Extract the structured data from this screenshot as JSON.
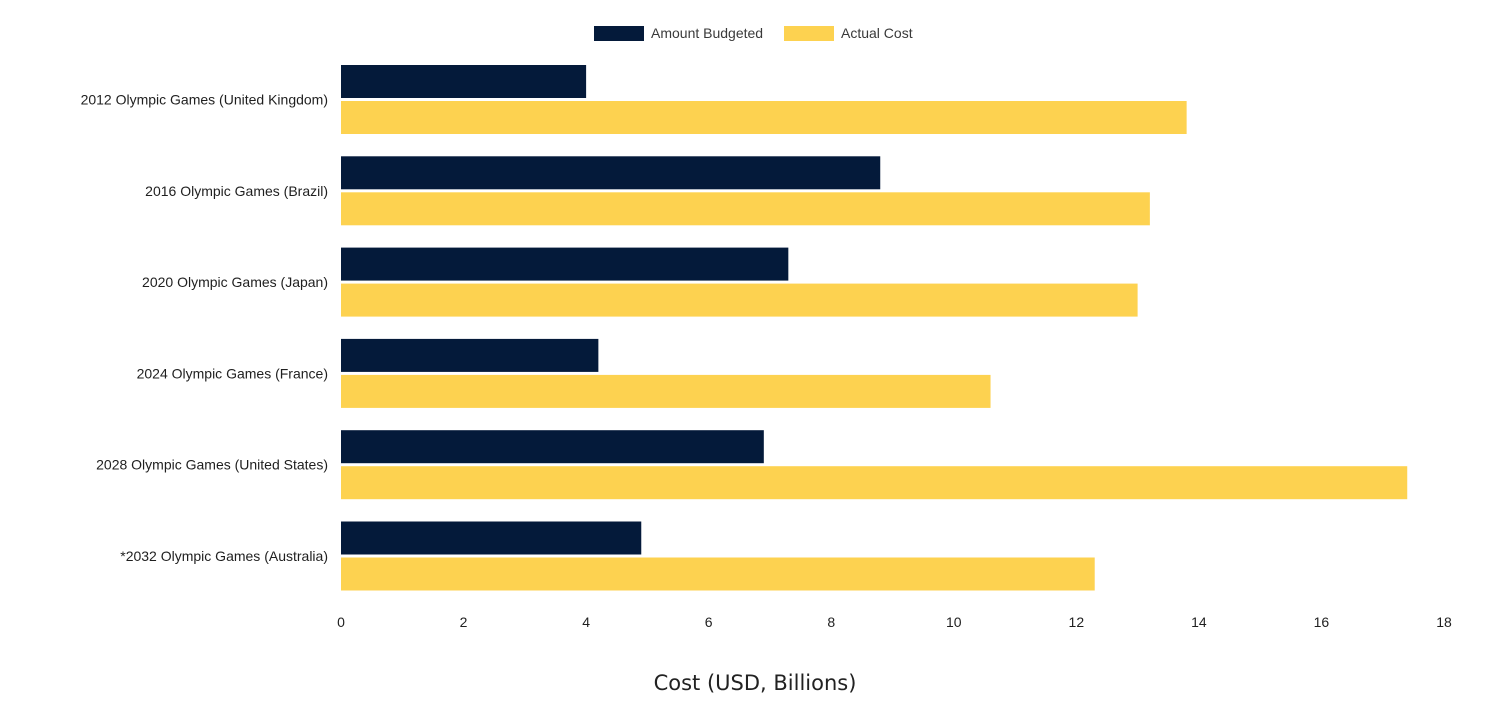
{
  "chart_data": {
    "type": "bar",
    "orientation": "horizontal",
    "categories": [
      "2012 Olympic Games (United Kingdom)",
      "2016 Olympic Games (Brazil)",
      "2020 Olympic Games (Japan)",
      "2024 Olympic Games (France)",
      "2028 Olympic Games (United States)",
      "*2032 Olympic Games (Australia)"
    ],
    "series": [
      {
        "name": "Amount Budgeted",
        "color": "#041a3a",
        "values": [
          4.0,
          8.8,
          7.3,
          4.2,
          6.9,
          4.9
        ]
      },
      {
        "name": "Actual Cost",
        "color": "#fdd250",
        "values": [
          13.8,
          13.2,
          13.0,
          10.6,
          17.4,
          12.3
        ]
      }
    ],
    "xlabel": "Cost (USD, Billions)",
    "ylabel": "",
    "xlim": [
      0,
      18
    ],
    "xticks": [
      "0",
      "2",
      "4",
      "6",
      "8",
      "10",
      "12",
      "14",
      "16",
      "18"
    ],
    "grid": false,
    "legend_position": "top-center"
  }
}
